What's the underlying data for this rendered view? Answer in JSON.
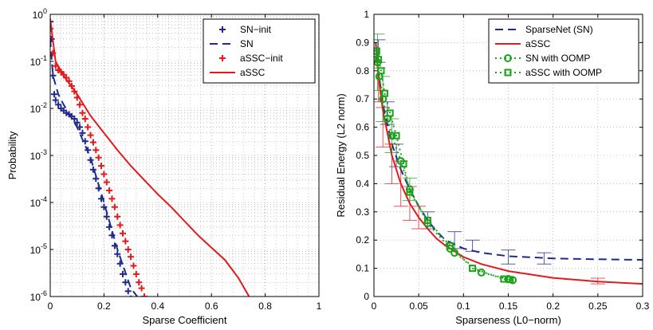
{
  "chart_data": [
    {
      "type": "line",
      "xlabel": "Sparse Coefficient",
      "ylabel": "Probability",
      "xlim": [
        0,
        1
      ],
      "ylim": [
        1e-06,
        1
      ],
      "yscale": "log",
      "grid": true,
      "legend_position": "top-right",
      "xticks": [
        "0",
        "0.2",
        "0.4",
        "0.6",
        "0.8",
        "1"
      ],
      "yticks": [
        "10^0",
        "10^-1",
        "10^-2",
        "10^-3",
        "10^-4",
        "10^-5",
        "10^-6"
      ],
      "series": [
        {
          "name": "SN−init",
          "style": "markers-plus",
          "color": "#1f2a8c",
          "x": [
            0.0,
            0.005,
            0.01,
            0.015,
            0.02,
            0.03,
            0.04,
            0.05,
            0.06,
            0.07,
            0.08,
            0.09,
            0.1,
            0.11,
            0.12,
            0.13,
            0.14,
            0.15,
            0.16,
            0.17,
            0.18,
            0.19,
            0.2,
            0.21,
            0.22,
            0.23,
            0.24,
            0.25,
            0.26,
            0.27,
            0.28,
            0.29,
            0.3
          ],
          "y": [
            0.7,
            0.3,
            0.05,
            0.02,
            0.015,
            0.012,
            0.01,
            0.009,
            0.008,
            0.0075,
            0.0068,
            0.006,
            0.005,
            0.004,
            0.003,
            0.002,
            0.0013,
            0.0008,
            0.0005,
            0.00032,
            0.0002,
            0.00012,
            8e-05,
            5e-05,
            3e-05,
            2e-05,
            1.2e-05,
            8e-06,
            5e-06,
            3e-06,
            2e-06,
            1.3e-06,
            9e-07
          ]
        },
        {
          "name": "SN",
          "style": "dashed",
          "color": "#1f2a8c",
          "x": [
            0.0,
            0.01,
            0.03,
            0.05,
            0.1,
            0.15,
            0.2,
            0.25,
            0.3,
            0.33
          ],
          "y": [
            0.3,
            0.05,
            0.02,
            0.012,
            0.004,
            0.0009,
            0.0001,
            1e-05,
            1.5e-06,
            9e-07
          ]
        },
        {
          "name": "aSSC−init",
          "style": "markers-plus",
          "color": "#e31a1c",
          "x": [
            0.0,
            0.01,
            0.02,
            0.03,
            0.04,
            0.05,
            0.06,
            0.07,
            0.08,
            0.09,
            0.1,
            0.11,
            0.12,
            0.13,
            0.14,
            0.15,
            0.16,
            0.17,
            0.18,
            0.19,
            0.2,
            0.21,
            0.22,
            0.23,
            0.24,
            0.25,
            0.26,
            0.27,
            0.28,
            0.29,
            0.3,
            0.31,
            0.32,
            0.33,
            0.34,
            0.35
          ],
          "y": [
            0.5,
            0.15,
            0.08,
            0.065,
            0.06,
            0.052,
            0.045,
            0.038,
            0.03,
            0.023,
            0.017,
            0.012,
            0.008,
            0.006,
            0.004,
            0.0027,
            0.0019,
            0.0013,
            0.0009,
            0.0006,
            0.0004,
            0.00027,
            0.00018,
            0.00012,
            8e-05,
            5e-05,
            3.3e-05,
            2.2e-05,
            1.5e-05,
            1e-05,
            7e-06,
            4.5e-06,
            3e-06,
            2e-06,
            1.5e-06,
            1e-06
          ]
        },
        {
          "name": "aSSC",
          "style": "solid",
          "color": "#e31a1c",
          "x": [
            0.0,
            0.02,
            0.05,
            0.1,
            0.15,
            0.2,
            0.25,
            0.3,
            0.35,
            0.4,
            0.45,
            0.5,
            0.55,
            0.6,
            0.65,
            0.7,
            0.74,
            0.76
          ],
          "y": [
            0.8,
            0.1,
            0.05,
            0.02,
            0.007,
            0.003,
            0.0013,
            0.0006,
            0.0003,
            0.00015,
            8e-05,
            4e-05,
            2e-05,
            1.1e-05,
            6e-06,
            2.5e-06,
            1e-06,
            7e-07
          ]
        }
      ]
    },
    {
      "type": "line",
      "xlabel": "Sparseness (L0−norm)",
      "ylabel": "Residual Energy (L2 norm)",
      "xlim": [
        0,
        0.3
      ],
      "ylim": [
        0,
        1
      ],
      "grid": true,
      "legend_position": "top-right",
      "xticks": [
        "0",
        "0.05",
        "0.1",
        "0.15",
        "0.2",
        "0.25",
        "0.3"
      ],
      "yticks": [
        "0",
        "0.1",
        "0.2",
        "0.3",
        "0.4",
        "0.5",
        "0.6",
        "0.7",
        "0.8",
        "0.9",
        "1"
      ],
      "series": [
        {
          "name": "SparseNet (SN)",
          "style": "dashed",
          "color": "#1f2a8c",
          "x": [
            0.002,
            0.005,
            0.01,
            0.02,
            0.03,
            0.04,
            0.05,
            0.06,
            0.07,
            0.08,
            0.1,
            0.12,
            0.15,
            0.2,
            0.25,
            0.3
          ],
          "y": [
            0.9,
            0.8,
            0.68,
            0.54,
            0.45,
            0.38,
            0.32,
            0.27,
            0.23,
            0.2,
            0.17,
            0.155,
            0.143,
            0.135,
            0.132,
            0.13
          ],
          "errorbars": [
            {
              "x": 0.005,
              "y": 0.87,
              "err": 0.04
            },
            {
              "x": 0.015,
              "y": 0.65,
              "err": 0.04
            },
            {
              "x": 0.025,
              "y": 0.5,
              "err": 0.04
            },
            {
              "x": 0.06,
              "y": 0.27,
              "err": 0.03
            },
            {
              "x": 0.09,
              "y": 0.2,
              "err": 0.03
            },
            {
              "x": 0.11,
              "y": 0.18,
              "err": 0.02
            },
            {
              "x": 0.15,
              "y": 0.14,
              "err": 0.025
            },
            {
              "x": 0.19,
              "y": 0.135,
              "err": 0.02
            }
          ]
        },
        {
          "name": "aSSC",
          "style": "solid",
          "color": "#e31a1c",
          "x": [
            0.002,
            0.005,
            0.01,
            0.02,
            0.03,
            0.04,
            0.05,
            0.06,
            0.07,
            0.08,
            0.1,
            0.12,
            0.15,
            0.2,
            0.25,
            0.3
          ],
          "y": [
            0.9,
            0.78,
            0.66,
            0.5,
            0.4,
            0.33,
            0.28,
            0.24,
            0.205,
            0.18,
            0.14,
            0.115,
            0.09,
            0.066,
            0.053,
            0.045
          ],
          "errorbars": [
            {
              "x": 0.005,
              "y": 0.75,
              "err": 0.06
            },
            {
              "x": 0.01,
              "y": 0.6,
              "err": 0.07
            },
            {
              "x": 0.02,
              "y": 0.47,
              "err": 0.07
            },
            {
              "x": 0.03,
              "y": 0.4,
              "err": 0.08
            },
            {
              "x": 0.04,
              "y": 0.33,
              "err": 0.06
            },
            {
              "x": 0.05,
              "y": 0.28,
              "err": 0.04
            },
            {
              "x": 0.25,
              "y": 0.055,
              "err": 0.01
            }
          ]
        },
        {
          "name": "SN with OOMP",
          "style": "dotted-circle",
          "color": "#1aa31a",
          "x": [
            0.002,
            0.004,
            0.006,
            0.01,
            0.015,
            0.02,
            0.03,
            0.04,
            0.06,
            0.085,
            0.09,
            0.12,
            0.15,
            0.155
          ],
          "y": [
            0.86,
            0.83,
            0.78,
            0.7,
            0.63,
            0.57,
            0.48,
            0.38,
            0.26,
            0.17,
            0.155,
            0.085,
            0.062,
            0.058
          ],
          "errorbars": [
            {
              "x": 0.004,
              "y": 0.83,
              "err": 0.1
            },
            {
              "x": 0.01,
              "y": 0.7,
              "err": 0.08
            },
            {
              "x": 0.02,
              "y": 0.57,
              "err": 0.06
            },
            {
              "x": 0.04,
              "y": 0.38,
              "err": 0.04
            }
          ]
        },
        {
          "name": "aSSC with OOMP",
          "style": "dotted-square",
          "color": "#1aa31a",
          "x": [
            0.003,
            0.005,
            0.008,
            0.012,
            0.018,
            0.025,
            0.033,
            0.04,
            0.06,
            0.085,
            0.11,
            0.145,
            0.152
          ],
          "y": [
            0.87,
            0.84,
            0.8,
            0.72,
            0.65,
            0.57,
            0.47,
            0.37,
            0.27,
            0.18,
            0.1,
            0.062,
            0.06
          ]
        }
      ]
    }
  ]
}
